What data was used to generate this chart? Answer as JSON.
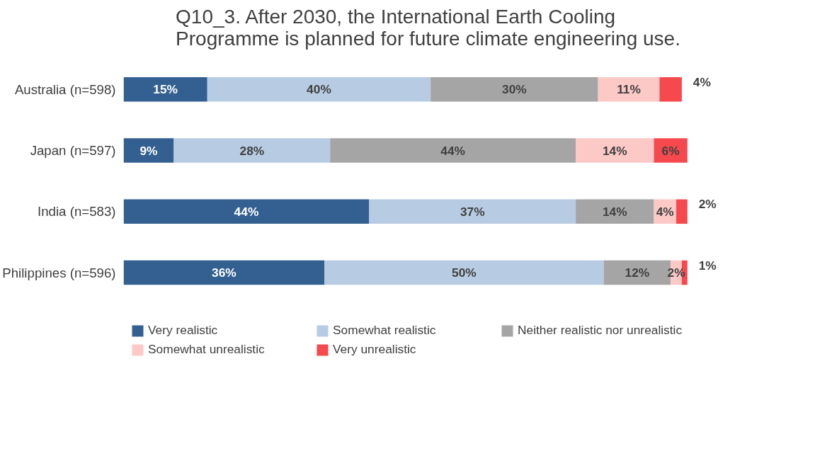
{
  "chart_data": {
    "type": "bar",
    "orientation": "horizontal",
    "stacked": true,
    "title": "Q10_3. After 2030, the International Earth Cooling Programme is planned for future climate engineering use.",
    "categories": [
      "Australia (n=598)",
      "Japan (n=597)",
      "India (n=583)",
      "Philippines (n=596)"
    ],
    "series": [
      {
        "name": "Very realistic",
        "color": "#335f91",
        "values": [
          15,
          9,
          44,
          36
        ],
        "value_labels": [
          "15%",
          "9%",
          "44%",
          "36%"
        ]
      },
      {
        "name": "Somewhat realistic",
        "color": "#b7cbe3",
        "values": [
          40,
          28,
          37,
          50
        ],
        "value_labels": [
          "40%",
          "28%",
          "37%",
          "50%"
        ]
      },
      {
        "name": "Neither realistic nor unrealistic",
        "color": "#a5a5a5",
        "values": [
          30,
          44,
          14,
          12
        ],
        "value_labels": [
          "30%",
          "44%",
          "14%",
          "12%"
        ]
      },
      {
        "name": "Somewhat unrealistic",
        "color": "#fcc9c7",
        "values": [
          11,
          14,
          4,
          2
        ],
        "value_labels": [
          "11%",
          "14%",
          "4%",
          "2%"
        ]
      },
      {
        "name": "Very unrealistic",
        "color": "#f5494d",
        "values": [
          4,
          6,
          2,
          1
        ],
        "value_labels": [
          "4%",
          "6%",
          "2%",
          "1%"
        ]
      }
    ],
    "tick_labels": "y",
    "legend": "bottom"
  }
}
